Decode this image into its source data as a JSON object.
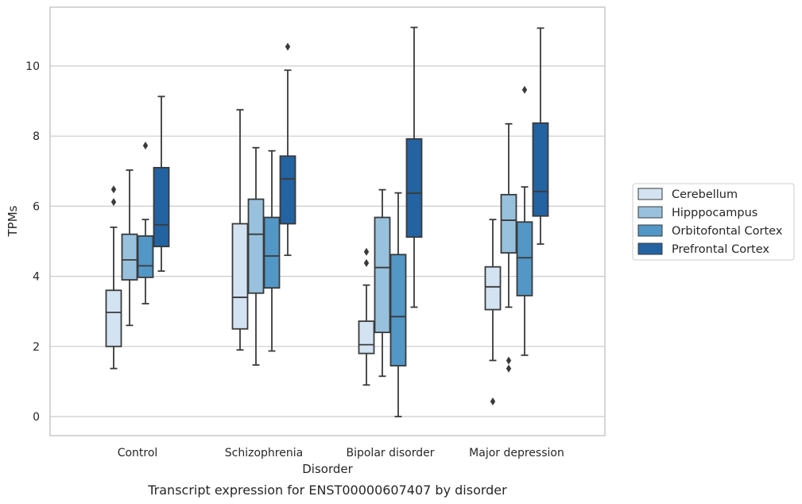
{
  "chart_data": {
    "type": "box",
    "caption": "Transcript expression for ENST00000607407 by disorder",
    "xlabel": "Disorder",
    "ylabel": "TPMs",
    "ylim": [
      -0.5,
      11.7
    ],
    "yticks": [
      0,
      2,
      4,
      6,
      8,
      10
    ],
    "grid": "horizontal",
    "legend_position": "right",
    "categories": [
      "Control",
      "Schizophrenia",
      "Bipolar disorder",
      "Major depression"
    ],
    "colors": {
      "series": [
        "#d4e3f2",
        "#98c1dd",
        "#5297c6",
        "#2363a2"
      ],
      "line": "#3a3a3a",
      "grid": "#cccccc",
      "frame": "#c9c9c9"
    },
    "series": [
      {
        "name": "Cerebellum",
        "boxes": [
          {
            "min": 1.37,
            "q1": 2.0,
            "median": 2.97,
            "q3": 3.6,
            "max": 5.4,
            "outliers": [
              6.12,
              6.48
            ]
          },
          {
            "min": 1.9,
            "q1": 2.5,
            "median": 3.4,
            "q3": 5.5,
            "max": 8.75,
            "outliers": []
          },
          {
            "min": 0.9,
            "q1": 1.8,
            "median": 2.05,
            "q3": 2.72,
            "max": 3.75,
            "outliers": [
              4.38,
              4.7
            ]
          },
          {
            "min": 1.6,
            "q1": 3.05,
            "median": 3.7,
            "q3": 4.27,
            "max": 5.62,
            "outliers": [
              0.43
            ]
          }
        ]
      },
      {
        "name": "Hipppocampus",
        "boxes": [
          {
            "min": 2.6,
            "q1": 3.9,
            "median": 4.47,
            "q3": 5.2,
            "max": 7.03,
            "outliers": []
          },
          {
            "min": 1.47,
            "q1": 3.52,
            "median": 5.2,
            "q3": 6.2,
            "max": 7.67,
            "outliers": []
          },
          {
            "min": 1.15,
            "q1": 2.4,
            "median": 4.25,
            "q3": 5.68,
            "max": 6.47,
            "outliers": []
          },
          {
            "min": 3.12,
            "q1": 4.67,
            "median": 5.6,
            "q3": 6.33,
            "max": 8.35,
            "outliers": [
              1.37,
              1.6
            ]
          }
        ]
      },
      {
        "name": "Orbitofontal Cortex",
        "boxes": [
          {
            "min": 3.22,
            "q1": 3.97,
            "median": 4.3,
            "q3": 5.15,
            "max": 5.62,
            "outliers": [
              7.73
            ]
          },
          {
            "min": 1.87,
            "q1": 3.67,
            "median": 4.58,
            "q3": 5.68,
            "max": 7.58,
            "outliers": []
          },
          {
            "min": 0.0,
            "q1": 1.45,
            "median": 2.85,
            "q3": 4.62,
            "max": 6.38,
            "outliers": []
          },
          {
            "min": 1.75,
            "q1": 3.45,
            "median": 4.53,
            "q3": 5.55,
            "max": 6.55,
            "outliers": [
              9.32
            ]
          }
        ]
      },
      {
        "name": "Prefrontal Cortex",
        "boxes": [
          {
            "min": 4.15,
            "q1": 4.85,
            "median": 5.47,
            "q3": 7.1,
            "max": 9.13,
            "outliers": []
          },
          {
            "min": 4.6,
            "q1": 5.5,
            "median": 6.78,
            "q3": 7.43,
            "max": 9.88,
            "outliers": [
              10.55
            ]
          },
          {
            "min": 3.12,
            "q1": 5.12,
            "median": 6.37,
            "q3": 7.92,
            "max": 11.1,
            "outliers": []
          },
          {
            "min": 4.92,
            "q1": 5.72,
            "median": 6.42,
            "q3": 8.37,
            "max": 11.08,
            "outliers": []
          }
        ]
      }
    ]
  }
}
